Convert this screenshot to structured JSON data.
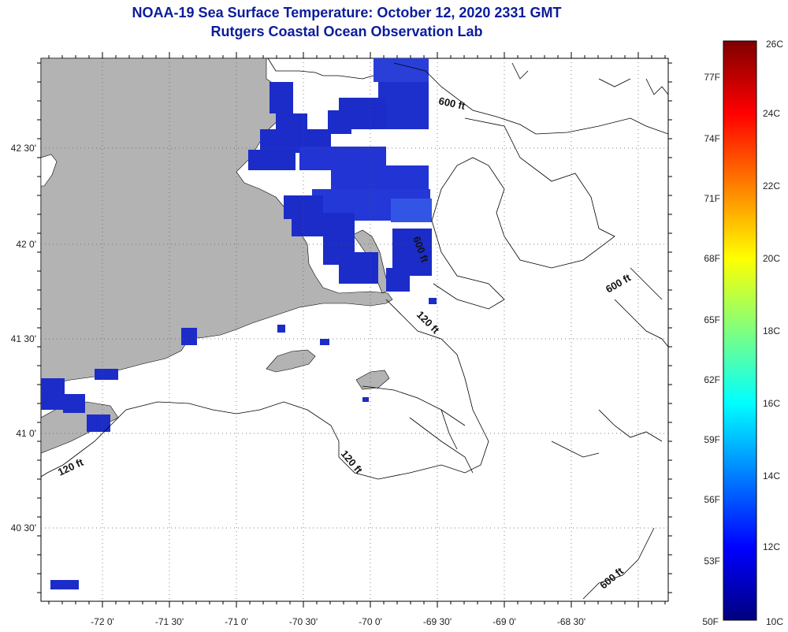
{
  "header": {
    "title": "NOAA-19 Sea Surface Temperature:  October 12, 2020 2331 GMT",
    "subtitle": "Rutgers Coastal Ocean Observation Lab"
  },
  "axes": {
    "longitude_ticks": [
      "-72 0'",
      "-71 30'",
      "-71 0'",
      "-70 30'",
      "-70 0'",
      "-69 30'",
      "-69 0'",
      "-68 30'"
    ],
    "latitude_ticks": [
      "42 30'",
      "42 0'",
      "41 30'",
      "41 0'",
      "40 30'"
    ]
  },
  "isobath_labels": [
    "600 ft",
    "600 ft",
    "600 ft",
    "600 ft",
    "120 ft",
    "120 ft",
    "120 ft"
  ],
  "colorbar": {
    "celsius": [
      "26C",
      "24C",
      "22C",
      "20C",
      "18C",
      "16C",
      "14C",
      "12C",
      "10C"
    ],
    "fahrenheit": [
      "77F",
      "74F",
      "71F",
      "68F",
      "65F",
      "62F",
      "59F",
      "56F",
      "53F",
      "50F"
    ],
    "colors": [
      "#00007f",
      "#0000ff",
      "#007fff",
      "#00ffff",
      "#7fff7f",
      "#ffff00",
      "#ff7f00",
      "#ff0000",
      "#7f0000"
    ]
  },
  "colors": {
    "land": "#b3b3b3",
    "sst_blue": "#1c2cc8",
    "title": "#0b1c9c"
  }
}
